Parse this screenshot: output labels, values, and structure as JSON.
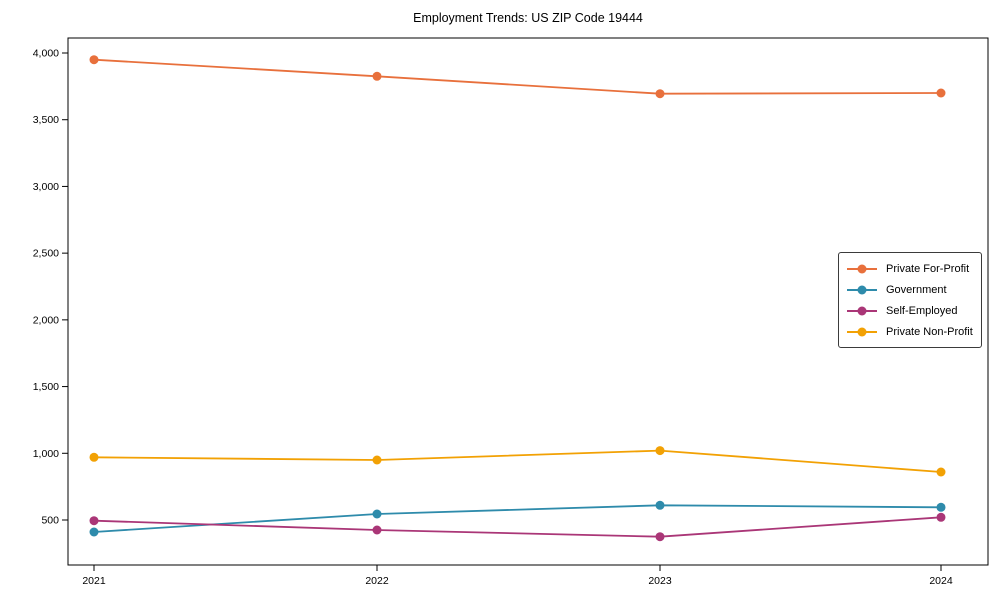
{
  "title": "Employment Trends: US ZIP Code 19444",
  "colors": {
    "background": "#ffffff",
    "axis": "#000000",
    "tick_text": "#000000",
    "legend_border": "#3b3b3b"
  },
  "chart_data": {
    "type": "line",
    "title": "Employment Trends: US ZIP Code 19444",
    "xlabel": "",
    "ylabel": "",
    "x_labels": [
      "2021",
      "2022",
      "2023",
      "2024"
    ],
    "series": [
      {
        "name": "Private For-Profit",
        "color": "#e8703c",
        "values": [
          3950,
          3825,
          3695,
          3700
        ]
      },
      {
        "name": "Government",
        "color": "#2e8bab",
        "values": [
          410,
          545,
          610,
          595
        ]
      },
      {
        "name": "Self-Employed",
        "color": "#aa3677",
        "values": [
          495,
          425,
          375,
          520
        ]
      },
      {
        "name": "Private Non-Profit",
        "color": "#f2a104",
        "values": [
          970,
          950,
          1020,
          860
        ]
      }
    ],
    "ytick_values": [
      500,
      1000,
      1500,
      2000,
      2500,
      3000,
      3500,
      4000
    ],
    "ytick_labels": [
      "500",
      "1,000",
      "1,500",
      "2,000",
      "2,500",
      "3,000",
      "3,500",
      "4,000"
    ],
    "ylim": [
      160,
      4110
    ],
    "grid": false,
    "legend_position": "center right",
    "marker": "circle"
  }
}
